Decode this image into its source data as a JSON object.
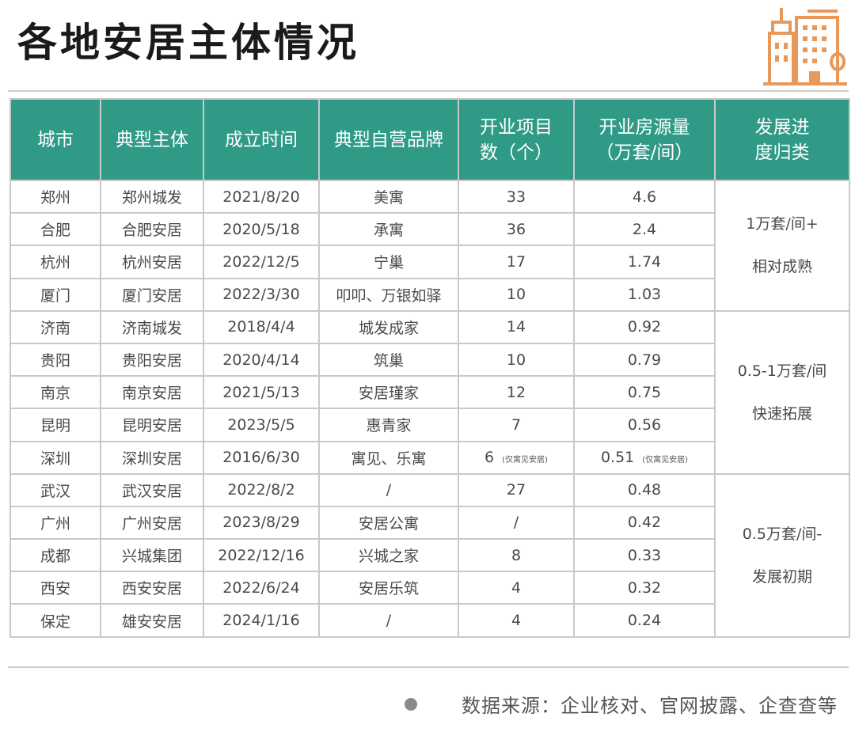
{
  "title": "各地安居主体情况",
  "colors": {
    "header_bg": "#2f9a86",
    "logo": "#e8995a"
  },
  "logo_icon": "building-icon",
  "headers": {
    "city": "城市",
    "entity": "典型主体",
    "date": "成立时间",
    "brand": "典型自营品牌",
    "projects_l1": "开业项目",
    "projects_l2": "数（个）",
    "units_l1": "开业房源量",
    "units_l2": "（万套/间）",
    "stage_l1": "发展进",
    "stage_l2": "度归类"
  },
  "rows": [
    {
      "city": "郑州",
      "entity": "郑州城发",
      "date": "2021/8/20",
      "brand": "美寓",
      "projects": "33",
      "units": "4.6"
    },
    {
      "city": "合肥",
      "entity": "合肥安居",
      "date": "2020/5/18",
      "brand": "承寓",
      "projects": "36",
      "units": "2.4"
    },
    {
      "city": "杭州",
      "entity": "杭州安居",
      "date": "2022/12/5",
      "brand": "宁巢",
      "projects": "17",
      "units": "1.74"
    },
    {
      "city": "厦门",
      "entity": "厦门安居",
      "date": "2022/3/30",
      "brand": "叩叩、万银如驿",
      "projects": "10",
      "units": "1.03"
    },
    {
      "city": "济南",
      "entity": "济南城发",
      "date": "2018/4/4",
      "brand": "城发成家",
      "projects": "14",
      "units": "0.92"
    },
    {
      "city": "贵阳",
      "entity": "贵阳安居",
      "date": "2020/4/14",
      "brand": "筑巢",
      "projects": "10",
      "units": "0.79"
    },
    {
      "city": "南京",
      "entity": "南京安居",
      "date": "2021/5/13",
      "brand": "安居瑾家",
      "projects": "12",
      "units": "0.75"
    },
    {
      "city": "昆明",
      "entity": "昆明安居",
      "date": "2023/5/5",
      "brand": "惠青家",
      "projects": "7",
      "units": "0.56"
    },
    {
      "city": "深圳",
      "entity": "深圳安居",
      "date": "2016/6/30",
      "brand": "寓见、乐寓",
      "projects": "6",
      "projects_note": "(仅寓见安居)",
      "units": "0.51",
      "units_note": "(仅寓见安居)"
    },
    {
      "city": "武汉",
      "entity": "武汉安居",
      "date": "2022/8/2",
      "brand": "/",
      "projects": "27",
      "units": "0.48"
    },
    {
      "city": "广州",
      "entity": "广州安居",
      "date": "2023/8/29",
      "brand": "安居公寓",
      "projects": "/",
      "units": "0.42"
    },
    {
      "city": "成都",
      "entity": "兴城集团",
      "date": "2022/12/16",
      "brand": "兴城之家",
      "projects": "8",
      "units": "0.33"
    },
    {
      "city": "西安",
      "entity": "西安安居",
      "date": "2022/6/24",
      "brand": "安居乐筑",
      "projects": "4",
      "units": "0.32"
    },
    {
      "city": "保定",
      "entity": "雄安安居",
      "date": "2024/1/16",
      "brand": "/",
      "projects": "4",
      "units": "0.24"
    }
  ],
  "groups": [
    {
      "line1": "1万套/间+",
      "line2": "相对成熟"
    },
    {
      "line1": "0.5-1万套/间",
      "line2": "快速拓展"
    },
    {
      "line1": "0.5万套/间-",
      "line2": "发展初期"
    }
  ],
  "footer": "数据来源：企业核对、官网披露、企查查等"
}
